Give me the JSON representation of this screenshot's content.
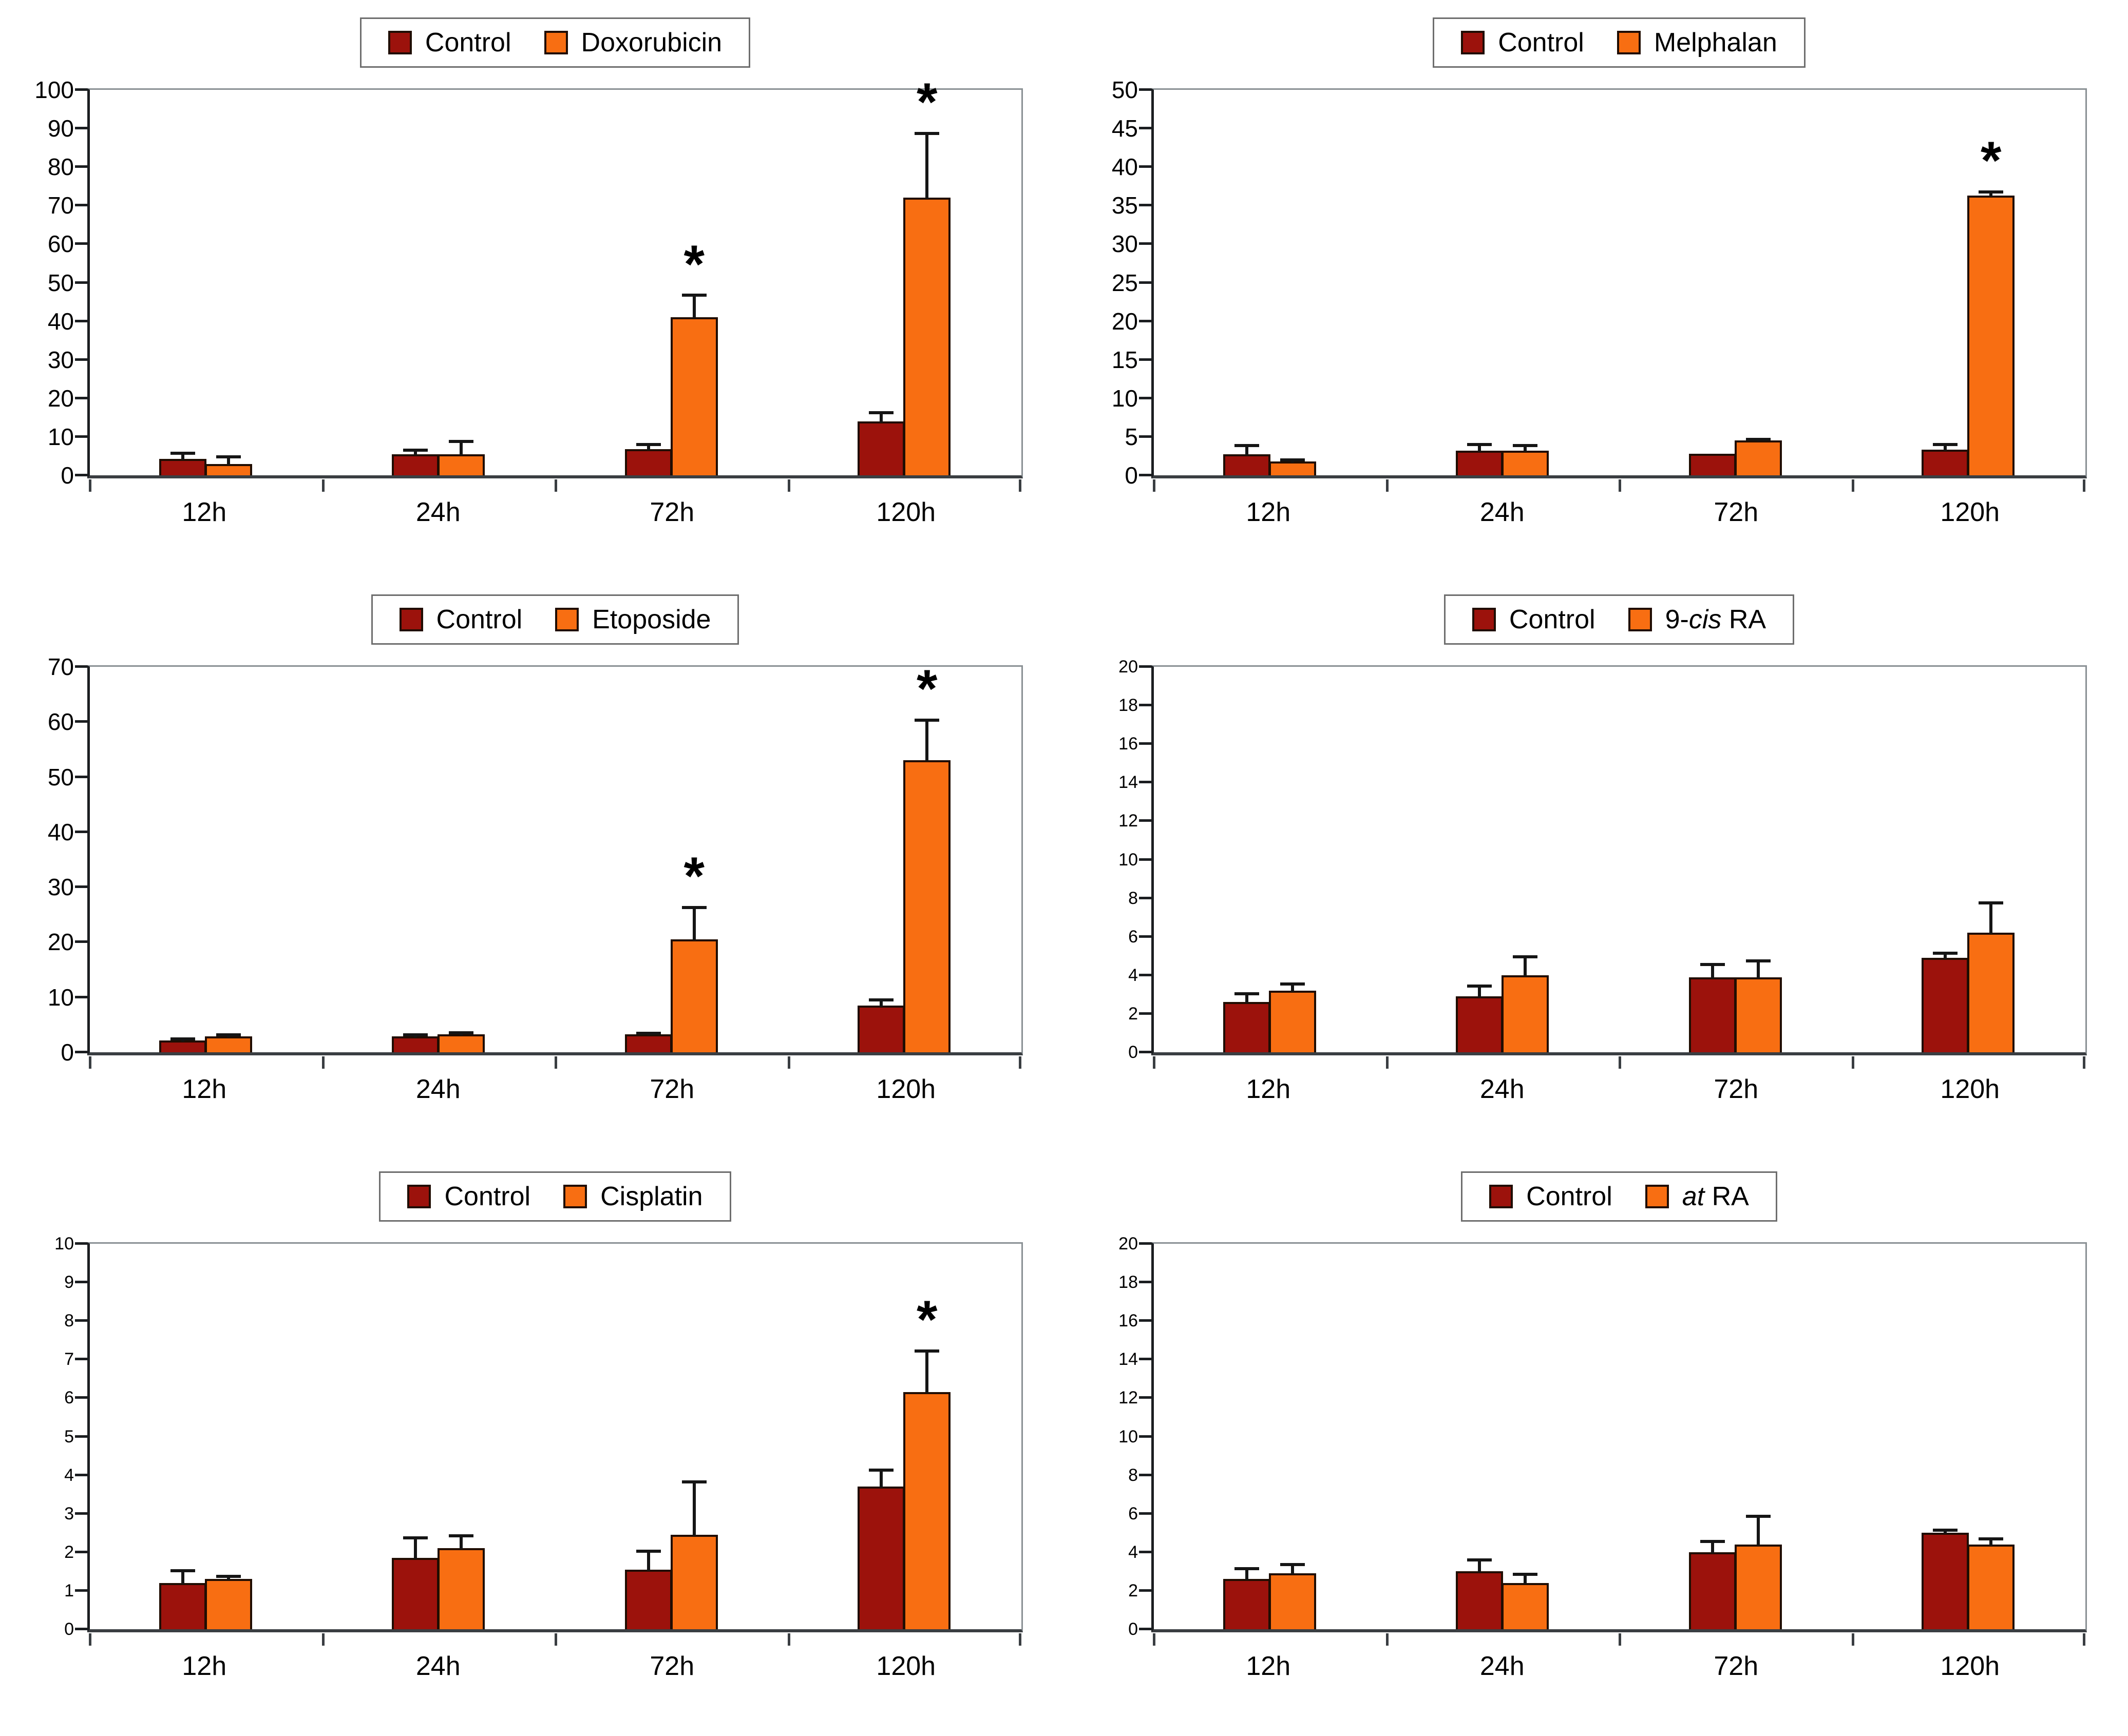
{
  "colors": {
    "control_fill": "#9C120C",
    "treatment_fill": "#F86E12",
    "bar_border": "#200d02",
    "error_bar": "#151515",
    "axis": "#1b1e21",
    "baseline": "#3a3e42",
    "frame": "#8a9094",
    "legend_border": "#6e6e6e",
    "asterisk": "#000000"
  },
  "significance_marker": "*",
  "chart_data": [
    {
      "type": "bar",
      "title": "",
      "legend_position": "top",
      "grid": false,
      "categories": [
        "12h",
        "24h",
        "72h",
        "120h"
      ],
      "ylim": [
        0,
        100
      ],
      "ytick_step": 10,
      "series": [
        {
          "name": "Control",
          "values": [
            4.2,
            5.5,
            6.8,
            14
          ],
          "errors_plus": [
            1.8,
            1.3,
            1.4,
            2.5
          ]
        },
        {
          "name": "Doxorubicin",
          "name_parts": [
            {
              "text": "Doxorubicin"
            }
          ],
          "values": [
            2.9,
            5.5,
            41,
            72
          ],
          "errors_plus": [
            2.1,
            3.5,
            6,
            17
          ],
          "significant": [
            false,
            false,
            true,
            true
          ]
        }
      ]
    },
    {
      "type": "bar",
      "title": "",
      "legend_position": "top",
      "grid": false,
      "categories": [
        "12h",
        "24h",
        "72h",
        "120h"
      ],
      "ylim": [
        0,
        50
      ],
      "ytick_step": 5,
      "series": [
        {
          "name": "Control",
          "values": [
            2.7,
            3.2,
            2.8,
            3.3
          ],
          "errors_plus": [
            1.3,
            0.9,
            0,
            0.8
          ]
        },
        {
          "name": "Melphalan",
          "name_parts": [
            {
              "text": "Melphalan"
            }
          ],
          "values": [
            1.8,
            3.2,
            4.5,
            36.3
          ],
          "errors_plus": [
            0.3,
            0.8,
            0.3,
            0.6
          ],
          "significant": [
            false,
            false,
            false,
            true
          ]
        }
      ]
    },
    {
      "type": "bar",
      "title": "",
      "legend_position": "top",
      "grid": false,
      "categories": [
        "12h",
        "24h",
        "72h",
        "120h"
      ],
      "ylim": [
        0,
        70
      ],
      "ytick_step": 10,
      "series": [
        {
          "name": "Control",
          "values": [
            2.1,
            2.9,
            3.3,
            8.5
          ],
          "errors_plus": [
            0.5,
            0.5,
            0.3,
            1.2
          ]
        },
        {
          "name": "Etoposide",
          "name_parts": [
            {
              "text": "Etoposide"
            }
          ],
          "values": [
            2.9,
            3.3,
            20.5,
            53
          ],
          "errors_plus": [
            0.5,
            0.4,
            6,
            7.5
          ],
          "significant": [
            false,
            false,
            true,
            true
          ]
        }
      ]
    },
    {
      "type": "bar",
      "title": "",
      "legend_position": "top",
      "grid": false,
      "categories": [
        "12h",
        "24h",
        "72h",
        "120h"
      ],
      "ylim": [
        0,
        20
      ],
      "ytick_step": 2,
      "series": [
        {
          "name": "Control",
          "values": [
            2.6,
            2.9,
            3.9,
            4.9
          ],
          "errors_plus": [
            0.5,
            0.6,
            0.7,
            0.3
          ]
        },
        {
          "name": "9-cis RA",
          "name_parts": [
            {
              "text": "9-"
            },
            {
              "text": "cis",
              "italic": true
            },
            {
              "text": " RA"
            }
          ],
          "values": [
            3.2,
            4.0,
            3.9,
            6.2
          ],
          "errors_plus": [
            0.4,
            1.0,
            0.9,
            1.6
          ],
          "significant": [
            false,
            false,
            false,
            false
          ]
        }
      ]
    },
    {
      "type": "bar",
      "title": "",
      "legend_position": "top",
      "grid": false,
      "categories": [
        "12h",
        "24h",
        "72h",
        "120h"
      ],
      "ylim": [
        0,
        10
      ],
      "ytick_step": 1,
      "series": [
        {
          "name": "Control",
          "values": [
            1.2,
            1.85,
            1.55,
            3.7
          ],
          "errors_plus": [
            0.35,
            0.55,
            0.5,
            0.45
          ]
        },
        {
          "name": "Cisplatin",
          "name_parts": [
            {
              "text": "Cisplatin"
            }
          ],
          "values": [
            1.3,
            2.1,
            2.45,
            6.15
          ],
          "errors_plus": [
            0.1,
            0.35,
            1.4,
            1.1
          ],
          "significant": [
            false,
            false,
            false,
            true
          ]
        }
      ]
    },
    {
      "type": "bar",
      "title": "",
      "legend_position": "top",
      "grid": false,
      "categories": [
        "12h",
        "24h",
        "72h",
        "120h"
      ],
      "ylim": [
        0,
        20
      ],
      "ytick_step": 2,
      "series": [
        {
          "name": "Control",
          "values": [
            2.6,
            3.0,
            4.0,
            5.0
          ],
          "errors_plus": [
            0.6,
            0.65,
            0.6,
            0.2
          ]
        },
        {
          "name": "at RA",
          "name_parts": [
            {
              "text": "at",
              "italic": true
            },
            {
              "text": " RA"
            }
          ],
          "values": [
            2.9,
            2.4,
            4.4,
            4.4
          ],
          "errors_plus": [
            0.5,
            0.5,
            1.5,
            0.35
          ],
          "significant": [
            false,
            false,
            false,
            false
          ]
        }
      ]
    }
  ]
}
